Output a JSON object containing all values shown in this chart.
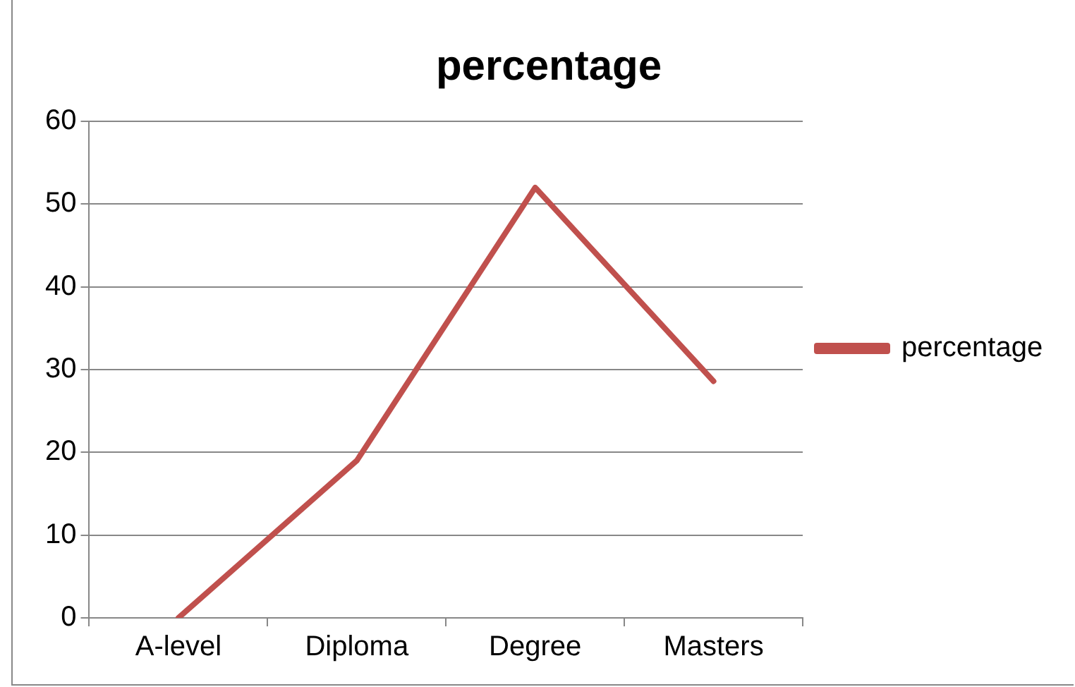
{
  "chart_data": {
    "type": "line",
    "title": "percentage",
    "categories": [
      "A-level",
      "Diploma",
      "Degree",
      "Masters"
    ],
    "series": [
      {
        "name": "percentage",
        "color": "#c0504d",
        "values": [
          0,
          19,
          52,
          28.6
        ]
      }
    ],
    "ylim": [
      0,
      60
    ],
    "yticks": [
      0,
      10,
      20,
      30,
      40,
      50,
      60
    ],
    "grid": "y",
    "legend": "right",
    "marker": "none",
    "line_style": "solid"
  }
}
